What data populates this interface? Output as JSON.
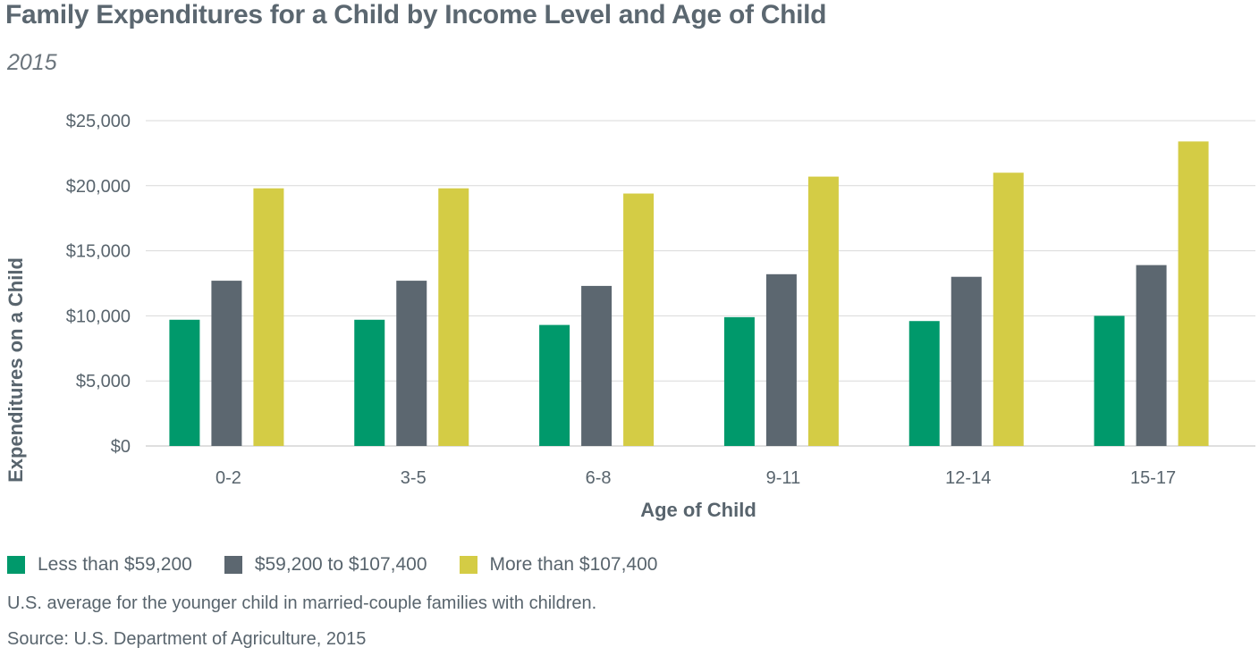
{
  "title": "Family Expenditures for a Child by Income Level and Age of Child",
  "subtitle": "2015",
  "note": "U.S. average for the younger child in married-couple families with children.",
  "source": "Source: U.S. Department of Agriculture, 2015",
  "colors": {
    "series_low": "#00996b",
    "series_mid": "#5c6770",
    "series_high": "#d4cc45",
    "grid": "#d9d9d9",
    "text": "#58646d"
  },
  "chart_data": {
    "type": "bar",
    "xlabel": "Age of Child",
    "ylabel": "Expenditures on a Child",
    "ylim": [
      0,
      25000
    ],
    "yticks": [
      0,
      5000,
      10000,
      15000,
      20000,
      25000
    ],
    "ytick_labels": [
      "$0",
      "$5,000",
      "$10,000",
      "$15,000",
      "$20,000",
      "$25,000"
    ],
    "grid": true,
    "legend_position": "bottom-left",
    "categories": [
      "0-2",
      "3-5",
      "6-8",
      "9-11",
      "12-14",
      "15-17"
    ],
    "series": [
      {
        "name": "Less than $59,200",
        "color": "#00996b",
        "values": [
          9700,
          9700,
          9300,
          9900,
          9600,
          10000
        ]
      },
      {
        "name": "$59,200 to $107,400",
        "color": "#5c6770",
        "values": [
          12700,
          12700,
          12300,
          13200,
          13000,
          13900
        ]
      },
      {
        "name": "More than $107,400",
        "color": "#d4cc45",
        "values": [
          19800,
          19800,
          19400,
          20700,
          21000,
          23400
        ]
      }
    ]
  }
}
